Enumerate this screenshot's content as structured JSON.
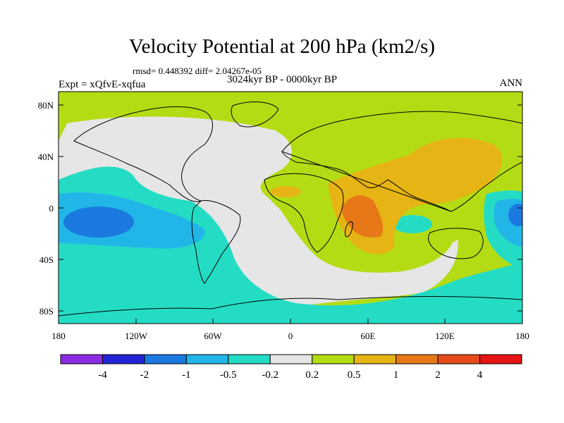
{
  "title": "Velocity Potential at 200 hPa (km2/s)",
  "stats_line": "rmsd= 0.448392 diff= 2.04267e-05",
  "period": "3024kyr BP - 0000kyr BP",
  "experiment": "Expt = xQfvE-xqfua",
  "season": "ANN",
  "lat_labels": [
    "80N",
    "40N",
    "0",
    "40S",
    "80S"
  ],
  "lon_labels": [
    "180",
    "120W",
    "60W",
    "0",
    "60E",
    "120E",
    "180"
  ],
  "colorbar": {
    "labels": [
      "-4",
      "-2",
      "-1",
      "-0.5",
      "-0.2",
      "0.2",
      "0.5",
      "1",
      "2",
      "4"
    ],
    "colors": [
      "#8a2be2",
      "#2424d6",
      "#1a7ae0",
      "#22b6e8",
      "#24dcc4",
      "#e6e6e6",
      "#b4dc14",
      "#e6b414",
      "#e67818",
      "#e64a18",
      "#e61414"
    ]
  },
  "colors": {
    "ocean_neutral": "#e6e6e6",
    "pos_low": "#b4dc14",
    "pos_mid": "#e6b414",
    "pos_high": "#e67818",
    "neg_low": "#24dcc4",
    "neg_mid": "#22b6e8",
    "neg_high": "#1a7ae0"
  }
}
